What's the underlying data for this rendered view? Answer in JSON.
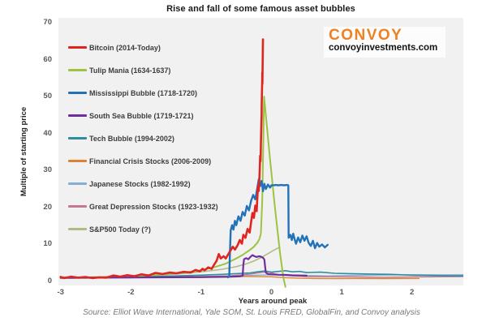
{
  "title": "Rise and fall of some famous asset bubbles",
  "logo": {
    "name": "CONVOY",
    "site": "convoyinvestments.com",
    "color": "#f08121"
  },
  "source": "Source: Elliot Wave International, Yale SOM, St. Louis FRED, GlobalFin, and Convoy analysis",
  "chart_data": {
    "type": "line",
    "title": "Rise and fall of some famous asset bubbles",
    "xlabel": "Years around peak",
    "ylabel": "Multiple of starting price",
    "xlim": [
      -3.03,
      2.73
    ],
    "ylim": [
      0,
      71.3
    ],
    "x_ticks": [
      -3,
      -2,
      -1,
      0,
      1,
      2
    ],
    "y_ticks": [
      0,
      10,
      20,
      30,
      40,
      50,
      60,
      70
    ],
    "grid": false,
    "plot_bg": "#f1f1f1",
    "legend_position": "upper-left-inside",
    "draw_order": [
      "japanese",
      "great_depression",
      "financial",
      "sp500",
      "tech",
      "tulip",
      "south_sea",
      "mississippi",
      "bitcoin"
    ],
    "series": [
      {
        "name": "bitcoin",
        "label": "Bitcoin (2014-Today)",
        "color": "#e02520",
        "width": 2.6,
        "points": [
          [
            -3,
            1.2
          ],
          [
            -2.95,
            0.9
          ],
          [
            -2.85,
            1.3
          ],
          [
            -2.75,
            1.0
          ],
          [
            -2.65,
            1.2
          ],
          [
            -2.55,
            0.9
          ],
          [
            -2.45,
            1.1
          ],
          [
            -2.35,
            1.0
          ],
          [
            -2.25,
            1.6
          ],
          [
            -2.15,
            1.3
          ],
          [
            -2.05,
            1.7
          ],
          [
            -1.95,
            1.4
          ],
          [
            -1.85,
            1.9
          ],
          [
            -1.75,
            1.6
          ],
          [
            -1.65,
            2.3
          ],
          [
            -1.55,
            2.0
          ],
          [
            -1.45,
            2.4
          ],
          [
            -1.35,
            2.2
          ],
          [
            -1.25,
            2.6
          ],
          [
            -1.15,
            2.4
          ],
          [
            -1.08,
            3.1
          ],
          [
            -1.02,
            2.7
          ],
          [
            -0.98,
            3.4
          ],
          [
            -0.95,
            3.0
          ],
          [
            -0.9,
            3.8
          ],
          [
            -0.85,
            3.4
          ],
          [
            -0.82,
            4.4
          ],
          [
            -0.78,
            5.6
          ],
          [
            -0.75,
            7.4
          ],
          [
            -0.72,
            6.2
          ],
          [
            -0.68,
            6.8
          ],
          [
            -0.65,
            6.2
          ],
          [
            -0.6,
            7.8
          ],
          [
            -0.55,
            9.4
          ],
          [
            -0.52,
            8.6
          ],
          [
            -0.48,
            9.8
          ],
          [
            -0.45,
            11.2
          ],
          [
            -0.42,
            10.2
          ],
          [
            -0.4,
            12.6
          ],
          [
            -0.37,
            11.8
          ],
          [
            -0.34,
            14.2
          ],
          [
            -0.31,
            13.2
          ],
          [
            -0.29,
            16.0
          ],
          [
            -0.27,
            18.5
          ],
          [
            -0.25,
            17.2
          ],
          [
            -0.23,
            20.5
          ],
          [
            -0.21,
            19.0
          ],
          [
            -0.2,
            23.0
          ],
          [
            -0.19,
            26.0
          ],
          [
            -0.18,
            24.5
          ],
          [
            -0.17,
            28.5
          ],
          [
            -0.165,
            31.0
          ],
          [
            -0.16,
            34.0
          ],
          [
            -0.155,
            32.5
          ],
          [
            -0.15,
            37.0
          ],
          [
            -0.145,
            41.0
          ],
          [
            -0.14,
            45.0
          ],
          [
            -0.138,
            48.0
          ],
          [
            -0.135,
            51.0
          ],
          [
            -0.132,
            54.0
          ],
          [
            -0.13,
            56.5
          ],
          [
            -0.128,
            53.5
          ],
          [
            -0.126,
            58.0
          ],
          [
            -0.124,
            61.0
          ],
          [
            -0.122,
            63.5
          ],
          [
            -0.12,
            65.5
          ]
        ]
      },
      {
        "name": "tulip",
        "label": "Tulip Mania (1634-1637)",
        "color": "#9cc341",
        "width": 2.0,
        "points": [
          [
            -3,
            0.9
          ],
          [
            -2.6,
            1.1
          ],
          [
            -2.2,
            1.3
          ],
          [
            -1.8,
            1.6
          ],
          [
            -1.5,
            2.0
          ],
          [
            -1.2,
            2.5
          ],
          [
            -1.0,
            3.0
          ],
          [
            -0.8,
            3.9
          ],
          [
            -0.65,
            4.8
          ],
          [
            -0.5,
            6.2
          ],
          [
            -0.4,
            7.3
          ],
          [
            -0.3,
            8.6
          ],
          [
            -0.25,
            9.4
          ],
          [
            -0.2,
            10.5
          ],
          [
            -0.17,
            11.5
          ],
          [
            -0.15,
            13.0
          ],
          [
            -0.13,
            22.0
          ],
          [
            -0.115,
            38.0
          ],
          [
            -0.105,
            50.0
          ],
          [
            -0.02,
            33.0
          ],
          [
            0.05,
            20.0
          ],
          [
            0.12,
            8.0
          ],
          [
            0.17,
            1.0
          ],
          [
            0.2,
            -1.5
          ]
        ]
      },
      {
        "name": "mississippi",
        "label": "Mississippi Bubble (1718-1720)",
        "color": "#2272b8",
        "width": 2.4,
        "points": [
          [
            -0.62,
            1.1
          ],
          [
            -0.6,
            1.3
          ],
          [
            -0.59,
            8.0
          ],
          [
            -0.58,
            13.8
          ],
          [
            -0.56,
            15.2
          ],
          [
            -0.54,
            14.0
          ],
          [
            -0.52,
            16.4
          ],
          [
            -0.5,
            15.2
          ],
          [
            -0.47,
            17.6
          ],
          [
            -0.44,
            16.4
          ],
          [
            -0.41,
            18.8
          ],
          [
            -0.38,
            17.8
          ],
          [
            -0.35,
            20.4
          ],
          [
            -0.32,
            19.2
          ],
          [
            -0.29,
            21.8
          ],
          [
            -0.26,
            23.4
          ],
          [
            -0.23,
            22.2
          ],
          [
            -0.2,
            25.4
          ],
          [
            -0.18,
            27.6
          ],
          [
            -0.16,
            25.8
          ],
          [
            -0.14,
            27.2
          ],
          [
            -0.12,
            24.4
          ],
          [
            -0.1,
            26.4
          ],
          [
            -0.08,
            25.0
          ],
          [
            -0.05,
            26.2
          ],
          [
            -0.02,
            25.4
          ],
          [
            0.0,
            26.0
          ],
          [
            0.03,
            26.0
          ],
          [
            0.06,
            26.1
          ],
          [
            0.1,
            26.0
          ],
          [
            0.14,
            26.1
          ],
          [
            0.18,
            26.0
          ],
          [
            0.22,
            26.1
          ],
          [
            0.24,
            26.0
          ],
          [
            0.245,
            11.8
          ],
          [
            0.27,
            12.6
          ],
          [
            0.29,
            11.2
          ],
          [
            0.31,
            12.9
          ],
          [
            0.33,
            11.4
          ],
          [
            0.35,
            10.2
          ],
          [
            0.38,
            11.9
          ],
          [
            0.41,
            10.6
          ],
          [
            0.44,
            12.4
          ],
          [
            0.47,
            11.0
          ],
          [
            0.5,
            12.2
          ],
          [
            0.53,
            10.4
          ],
          [
            0.56,
            9.6
          ],
          [
            0.59,
            11.0
          ],
          [
            0.62,
            9.0
          ],
          [
            0.65,
            10.4
          ],
          [
            0.68,
            9.4
          ],
          [
            0.72,
            10.0
          ],
          [
            0.76,
            9.2
          ],
          [
            0.8,
            9.9
          ]
        ]
      },
      {
        "name": "south_sea",
        "label": "South Sea Bubble (1719-1721)",
        "color": "#6d2f9e",
        "width": 2.2,
        "points": [
          [
            -3,
            1.0
          ],
          [
            -2,
            1.05
          ],
          [
            -1,
            1.15
          ],
          [
            -0.6,
            1.25
          ],
          [
            -0.45,
            1.35
          ],
          [
            -0.41,
            1.5
          ],
          [
            -0.4,
            4.5
          ],
          [
            -0.39,
            6.0
          ],
          [
            -0.36,
            6.3
          ],
          [
            -0.33,
            6.0
          ],
          [
            -0.3,
            6.6
          ],
          [
            -0.27,
            7.1
          ],
          [
            -0.24,
            6.8
          ],
          [
            -0.21,
            6.6
          ],
          [
            -0.18,
            6.8
          ],
          [
            -0.15,
            6.7
          ],
          [
            -0.12,
            6.4
          ],
          [
            -0.1,
            5.9
          ],
          [
            -0.09,
            4.0
          ],
          [
            -0.08,
            2.4
          ],
          [
            -0.05,
            2.0
          ],
          [
            0.0,
            1.9
          ],
          [
            0.1,
            1.8
          ],
          [
            0.2,
            1.75
          ],
          [
            0.3,
            1.65
          ],
          [
            0.4,
            1.6
          ],
          [
            0.5,
            1.55
          ]
        ]
      },
      {
        "name": "tech",
        "label": "Tech Bubble (1994-2002)",
        "color": "#2f8da0",
        "width": 1.6,
        "points": [
          [
            -3,
            0.9
          ],
          [
            -2.5,
            1.0
          ],
          [
            -2,
            1.2
          ],
          [
            -1.5,
            1.4
          ],
          [
            -1,
            1.7
          ],
          [
            -0.7,
            1.9
          ],
          [
            -0.5,
            2.1
          ],
          [
            -0.3,
            2.3
          ],
          [
            -0.2,
            2.6
          ],
          [
            -0.1,
            2.8
          ],
          [
            0,
            2.5
          ],
          [
            0.1,
            2.7
          ],
          [
            0.2,
            2.9
          ],
          [
            0.3,
            2.6
          ],
          [
            0.4,
            2.7
          ],
          [
            0.5,
            2.4
          ],
          [
            0.7,
            2.5
          ],
          [
            0.9,
            2.2
          ],
          [
            1.1,
            2.1
          ],
          [
            1.4,
            2.0
          ],
          [
            1.7,
            1.9
          ],
          [
            2.0,
            1.7
          ],
          [
            2.3,
            1.6
          ],
          [
            2.6,
            1.5
          ],
          [
            2.73,
            1.5
          ]
        ]
      },
      {
        "name": "financial",
        "label": "Financial Crisis Stocks (2006-2009)",
        "color": "#dd8233",
        "width": 1.4,
        "points": [
          [
            -3,
            0.9
          ],
          [
            -2.5,
            1.0
          ],
          [
            -2,
            1.1
          ],
          [
            -1.5,
            1.2
          ],
          [
            -1,
            1.3
          ],
          [
            -0.5,
            1.35
          ],
          [
            -0.2,
            1.3
          ],
          [
            0,
            1.25
          ],
          [
            0.2,
            1.0
          ],
          [
            0.4,
            0.85
          ],
          [
            0.6,
            0.8
          ],
          [
            0.9,
            0.75
          ],
          [
            1.2,
            0.8
          ],
          [
            1.6,
            0.75
          ],
          [
            2.0,
            0.8
          ],
          [
            2.1,
            0.8
          ]
        ]
      },
      {
        "name": "japanese",
        "label": "Japanese Stocks (1982-1992)",
        "color": "#85aed4",
        "width": 1.4,
        "points": [
          [
            -3,
            0.8
          ],
          [
            -2.5,
            0.9
          ],
          [
            -2,
            1.0
          ],
          [
            -1.5,
            1.1
          ],
          [
            -1,
            1.3
          ],
          [
            -0.5,
            1.5
          ],
          [
            -0.2,
            1.7
          ],
          [
            0,
            1.8
          ],
          [
            0.2,
            1.7
          ],
          [
            0.5,
            1.6
          ],
          [
            0.8,
            1.5
          ],
          [
            1.1,
            1.6
          ],
          [
            1.5,
            1.7
          ],
          [
            2.0,
            1.8
          ],
          [
            2.4,
            1.75
          ],
          [
            2.73,
            1.8
          ]
        ]
      },
      {
        "name": "great_depression",
        "label": "Great Depression Stocks (1923-1932)",
        "color": "#c4798f",
        "width": 1.4,
        "points": [
          [
            -3,
            1.0
          ],
          [
            -2.5,
            1.1
          ],
          [
            -2,
            1.0
          ],
          [
            -1.5,
            1.2
          ],
          [
            -1,
            1.3
          ],
          [
            -0.6,
            1.5
          ],
          [
            -0.3,
            2.0
          ],
          [
            -0.15,
            2.4
          ],
          [
            -0.05,
            2.6
          ],
          [
            0,
            2.3
          ],
          [
            0.1,
            1.8
          ],
          [
            0.3,
            1.5
          ],
          [
            0.5,
            1.3
          ],
          [
            0.8,
            1.25
          ],
          [
            1.2,
            1.2
          ],
          [
            1.6,
            1.1
          ],
          [
            2.0,
            1.2
          ],
          [
            2.4,
            1.25
          ],
          [
            2.73,
            1.3
          ]
        ]
      },
      {
        "name": "sp500",
        "label": "S&P500 Today (?)",
        "color": "#b4ba85",
        "width": 1.6,
        "points": [
          [
            -3,
            1.0
          ],
          [
            -2.5,
            1.15
          ],
          [
            -2,
            1.4
          ],
          [
            -1.6,
            1.7
          ],
          [
            -1.2,
            2.2
          ],
          [
            -0.9,
            2.8
          ],
          [
            -0.7,
            3.3
          ],
          [
            -0.5,
            4.0
          ],
          [
            -0.35,
            4.8
          ],
          [
            -0.25,
            5.5
          ],
          [
            -0.15,
            6.4
          ],
          [
            -0.05,
            7.5
          ],
          [
            0.02,
            8.3
          ],
          [
            0.08,
            8.9
          ],
          [
            0.12,
            9.2
          ]
        ]
      }
    ]
  }
}
